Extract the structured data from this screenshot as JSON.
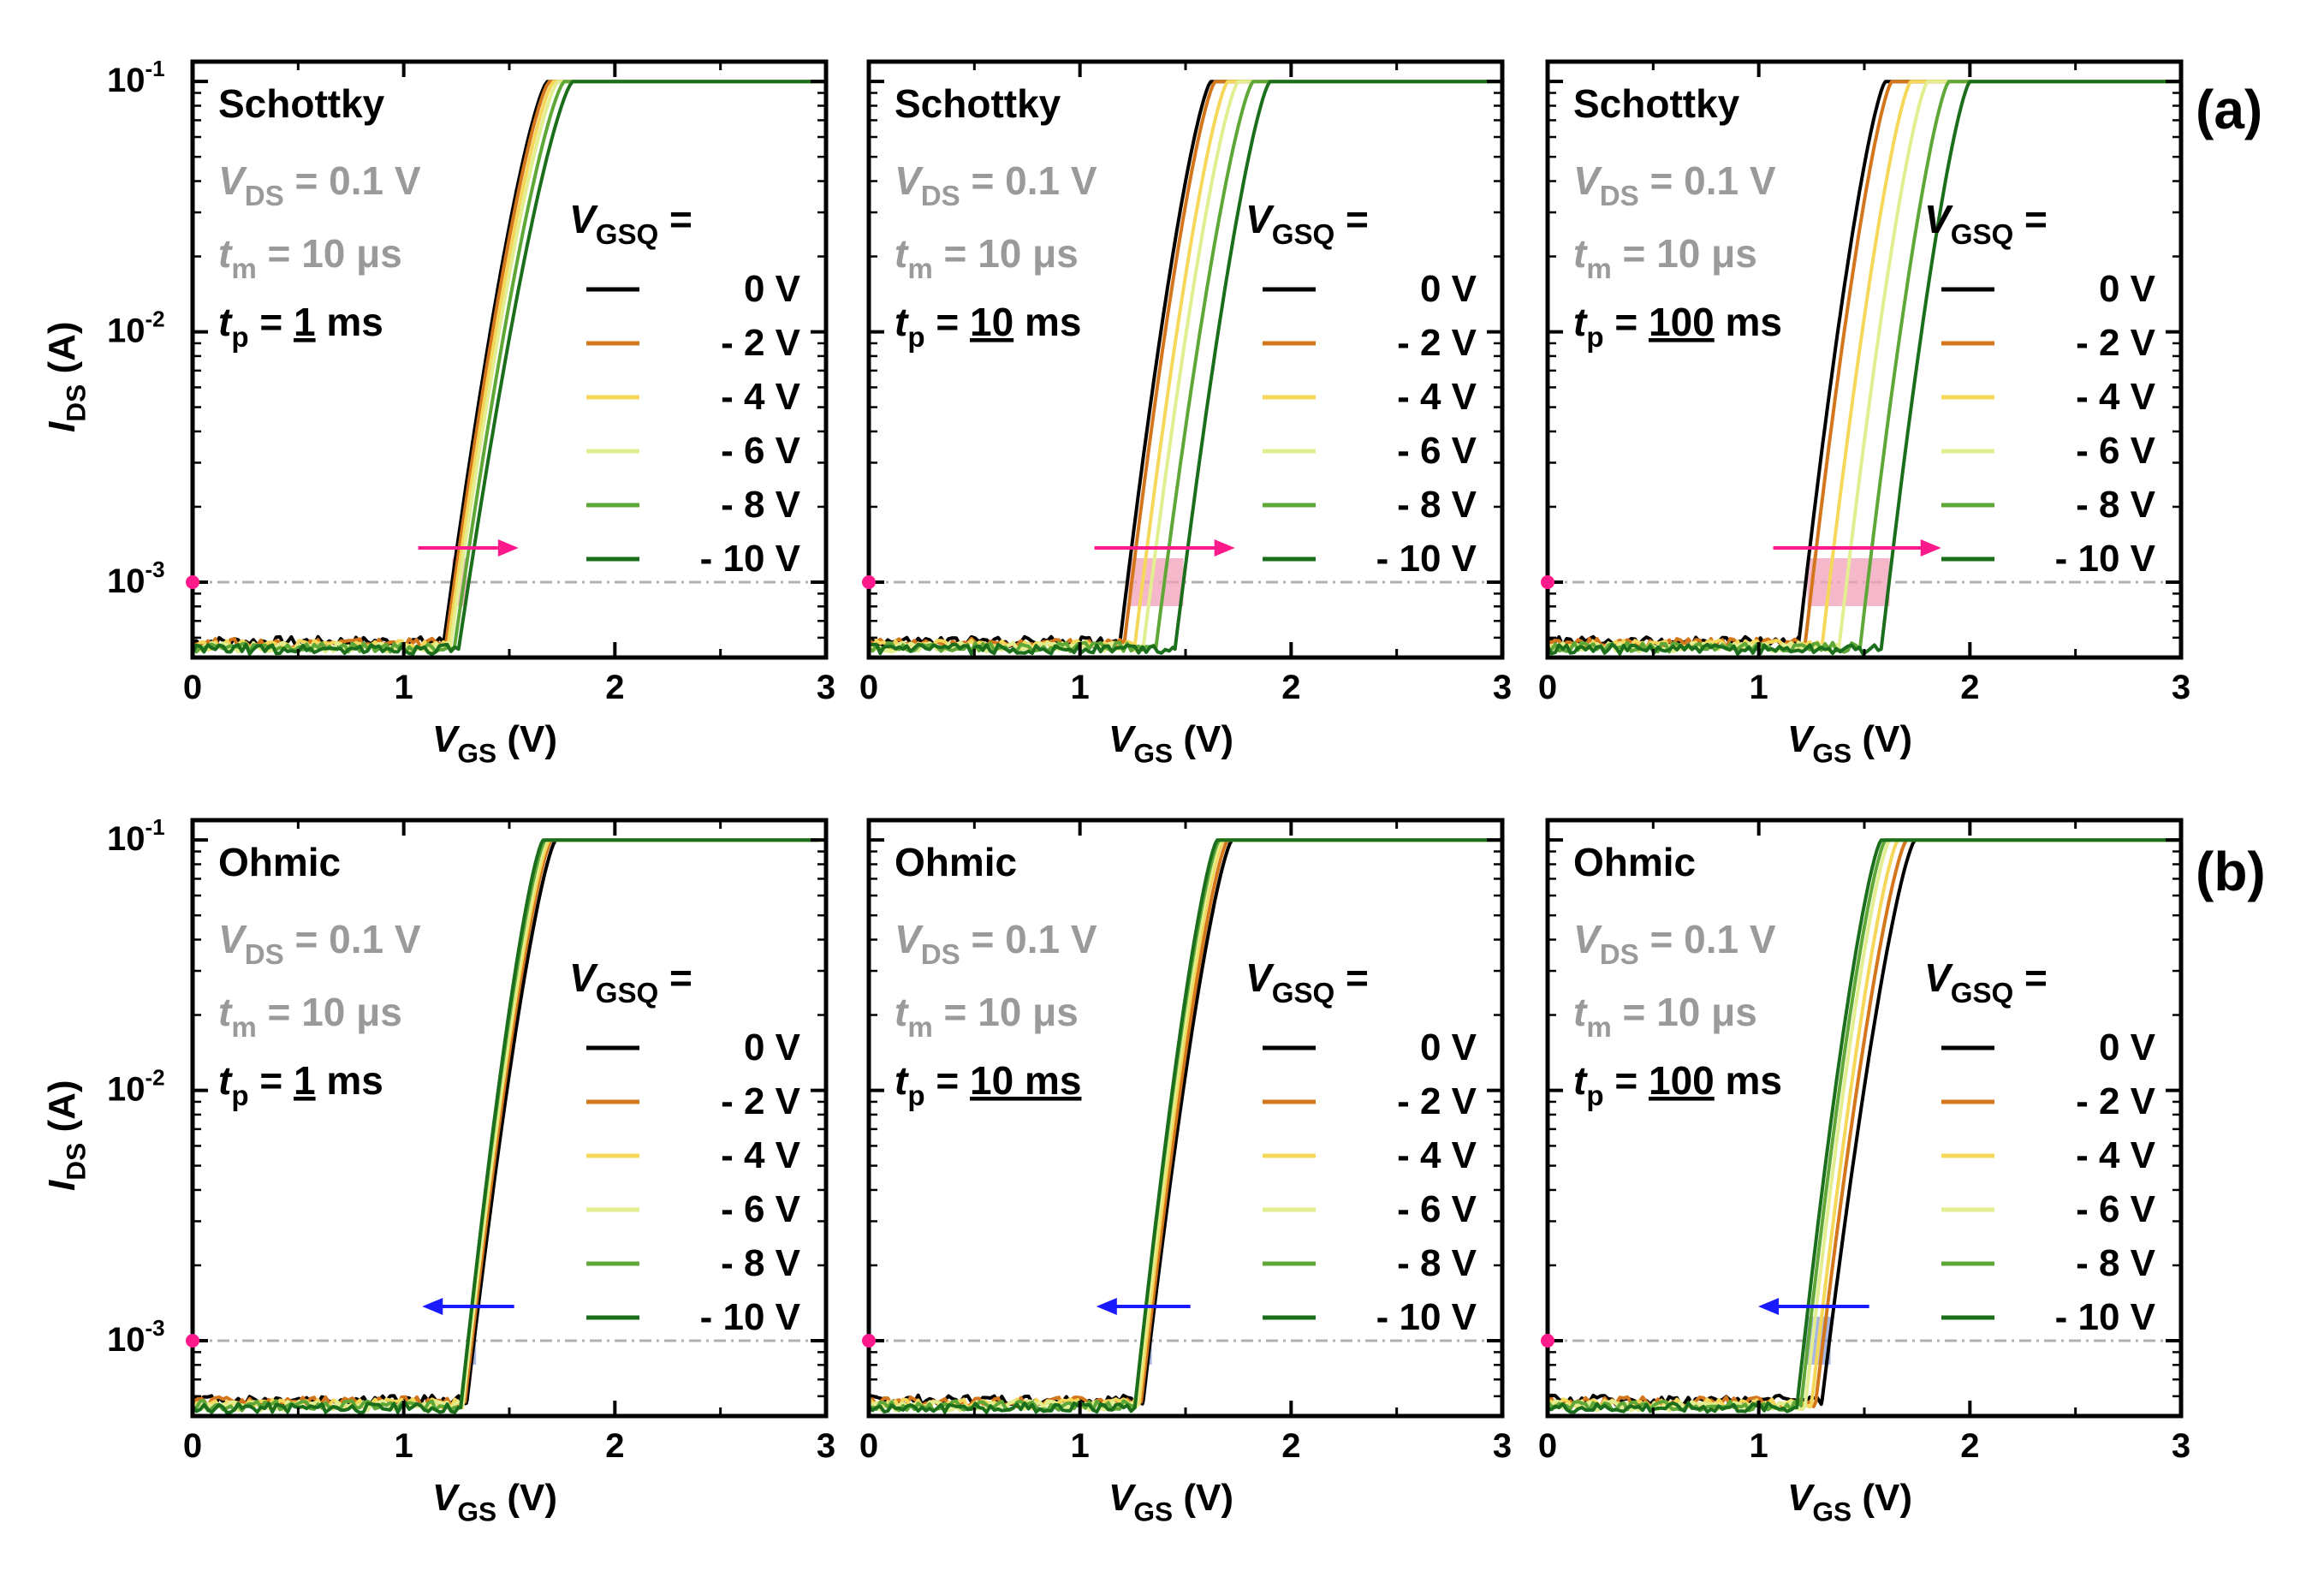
{
  "figure": {
    "row_labels": [
      "(a)",
      "(b)"
    ],
    "ylabel": {
      "main": "I",
      "sub": "DS",
      "unit": " (A)"
    },
    "xlabel": {
      "main": "V",
      "sub": "GS",
      "unit": " (V)"
    },
    "common": {
      "vds": {
        "main": "V",
        "sub": "DS",
        "rest": " = 0.1 V"
      },
      "tm": {
        "main": "t",
        "sub": "m",
        "rest": " = 10 μs"
      },
      "legend_title": {
        "main": "V",
        "sub": "GSQ",
        "rest": " ="
      }
    },
    "legend": [
      {
        "label": "0 V",
        "color": "#000000"
      },
      {
        "label": "- 2 V",
        "color": "#d4761c"
      },
      {
        "label": "- 4 V",
        "color": "#f5d85a"
      },
      {
        "label": "- 6 V",
        "color": "#e2ee8f"
      },
      {
        "label": "- 8 V",
        "color": "#5fa838"
      },
      {
        "label": "- 10 V",
        "color": "#1b6e1b"
      }
    ],
    "colors": {
      "shift_arrow_right": "#ff1a8c",
      "shift_arrow_left": "#1a1aff",
      "band_pink": "#f2a0b8",
      "band_blue": "#8b9fd8",
      "ref_line": "#b0b0b0"
    }
  },
  "chart_data": [
    {
      "type": "line",
      "row": 0,
      "col": 0,
      "contact": "Schottky",
      "tp": {
        "prefix": " = ",
        "value": "1",
        "unit": " ms"
      },
      "shift_direction": "right",
      "xlabel": "VGS (V)",
      "ylabel": "IDS (A)",
      "xlim": [
        0,
        3
      ],
      "ylim": [
        0.0005,
        0.12
      ],
      "yscale": "log",
      "xticks": [
        0,
        1,
        2,
        3
      ],
      "yticks": [
        {
          "exp": "-1",
          "value": 0.1
        },
        {
          "exp": "-2",
          "value": 0.01
        },
        {
          "exp": "-3",
          "value": 0.001
        }
      ],
      "reference_current": 0.001,
      "series": [
        {
          "name": "0 V",
          "threshold_v": 1.19,
          "saturation_v": 1.68,
          "i_on": 0.1,
          "noise_floor": 0.00058
        },
        {
          "name": "- 2 V",
          "threshold_v": 1.2,
          "saturation_v": 1.69,
          "i_on": 0.1,
          "noise_floor": 0.00057
        },
        {
          "name": "- 4 V",
          "threshold_v": 1.21,
          "saturation_v": 1.71,
          "i_on": 0.1,
          "noise_floor": 0.00056
        },
        {
          "name": "- 6 V",
          "threshold_v": 1.22,
          "saturation_v": 1.73,
          "i_on": 0.1,
          "noise_floor": 0.00055
        },
        {
          "name": "- 8 V",
          "threshold_v": 1.24,
          "saturation_v": 1.76,
          "i_on": 0.1,
          "noise_floor": 0.00055
        },
        {
          "name": "- 10 V",
          "threshold_v": 1.26,
          "saturation_v": 1.8,
          "i_on": 0.1,
          "noise_floor": 0.00054
        }
      ]
    },
    {
      "type": "line",
      "row": 0,
      "col": 1,
      "contact": "Schottky",
      "tp": {
        "prefix": " = ",
        "value": "10",
        "unit": " ms"
      },
      "shift_direction": "right",
      "xlabel": "VGS (V)",
      "ylabel": "IDS (A)",
      "xlim": [
        0,
        3
      ],
      "ylim": [
        0.0005,
        0.12
      ],
      "yscale": "log",
      "xticks": [
        0,
        1,
        2,
        3
      ],
      "yticks": [
        {
          "exp": "-1",
          "value": 0.1
        },
        {
          "exp": "-2",
          "value": 0.01
        },
        {
          "exp": "-3",
          "value": 0.001
        }
      ],
      "reference_current": 0.001,
      "series": [
        {
          "name": "0 V",
          "threshold_v": 1.19,
          "saturation_v": 1.62,
          "i_on": 0.1,
          "noise_floor": 0.00058
        },
        {
          "name": "- 2 V",
          "threshold_v": 1.21,
          "saturation_v": 1.64,
          "i_on": 0.1,
          "noise_floor": 0.00057
        },
        {
          "name": "- 4 V",
          "threshold_v": 1.26,
          "saturation_v": 1.7,
          "i_on": 0.1,
          "noise_floor": 0.00056
        },
        {
          "name": "- 6 V",
          "threshold_v": 1.3,
          "saturation_v": 1.75,
          "i_on": 0.1,
          "noise_floor": 0.00055
        },
        {
          "name": "- 8 V",
          "threshold_v": 1.36,
          "saturation_v": 1.82,
          "i_on": 0.1,
          "noise_floor": 0.00055
        },
        {
          "name": "- 10 V",
          "threshold_v": 1.45,
          "saturation_v": 1.9,
          "i_on": 0.1,
          "noise_floor": 0.00054
        }
      ]
    },
    {
      "type": "line",
      "row": 0,
      "col": 2,
      "contact": "Schottky",
      "tp": {
        "prefix": " = ",
        "value": "100",
        "unit": " ms"
      },
      "shift_direction": "right",
      "xlabel": "VGS (V)",
      "ylabel": "IDS (A)",
      "xlim": [
        0,
        3
      ],
      "ylim": [
        0.0005,
        0.12
      ],
      "yscale": "log",
      "xticks": [
        0,
        1,
        2,
        3
      ],
      "yticks": [
        {
          "exp": "-1",
          "value": 0.1
        },
        {
          "exp": "-2",
          "value": 0.01
        },
        {
          "exp": "-3",
          "value": 0.001
        }
      ],
      "reference_current": 0.001,
      "series": [
        {
          "name": "0 V",
          "threshold_v": 1.19,
          "saturation_v": 1.6,
          "i_on": 0.1,
          "noise_floor": 0.00058
        },
        {
          "name": "- 2 V",
          "threshold_v": 1.22,
          "saturation_v": 1.63,
          "i_on": 0.1,
          "noise_floor": 0.00057
        },
        {
          "name": "- 4 V",
          "threshold_v": 1.3,
          "saturation_v": 1.72,
          "i_on": 0.1,
          "noise_floor": 0.00056
        },
        {
          "name": "- 6 V",
          "threshold_v": 1.38,
          "saturation_v": 1.8,
          "i_on": 0.1,
          "noise_floor": 0.00055
        },
        {
          "name": "- 8 V",
          "threshold_v": 1.48,
          "saturation_v": 1.9,
          "i_on": 0.1,
          "noise_floor": 0.00055
        },
        {
          "name": "- 10 V",
          "threshold_v": 1.58,
          "saturation_v": 2.0,
          "i_on": 0.1,
          "noise_floor": 0.00054
        }
      ]
    },
    {
      "type": "line",
      "row": 1,
      "col": 0,
      "contact": "Ohmic",
      "tp": {
        "prefix": " = ",
        "value": "1",
        "unit": " ms"
      },
      "shift_direction": "left",
      "xlabel": "VGS (V)",
      "ylabel": "IDS (A)",
      "xlim": [
        0,
        3
      ],
      "ylim": [
        0.0005,
        0.12
      ],
      "yscale": "log",
      "xticks": [
        0,
        1,
        2,
        3
      ],
      "yticks": [
        {
          "exp": "-1",
          "value": 0.1
        },
        {
          "exp": "-2",
          "value": 0.01
        },
        {
          "exp": "-3",
          "value": 0.001
        }
      ],
      "reference_current": 0.001,
      "series": [
        {
          "name": "0 V",
          "threshold_v": 1.3,
          "saturation_v": 1.72,
          "i_on": 0.1,
          "noise_floor": 0.00058
        },
        {
          "name": "- 2 V",
          "threshold_v": 1.29,
          "saturation_v": 1.7,
          "i_on": 0.1,
          "noise_floor": 0.00057
        },
        {
          "name": "- 4 V",
          "threshold_v": 1.28,
          "saturation_v": 1.69,
          "i_on": 0.1,
          "noise_floor": 0.00056
        },
        {
          "name": "- 6 V",
          "threshold_v": 1.28,
          "saturation_v": 1.68,
          "i_on": 0.1,
          "noise_floor": 0.00055
        },
        {
          "name": "- 8 V",
          "threshold_v": 1.27,
          "saturation_v": 1.67,
          "i_on": 0.1,
          "noise_floor": 0.00055
        },
        {
          "name": "- 10 V",
          "threshold_v": 1.27,
          "saturation_v": 1.66,
          "i_on": 0.1,
          "noise_floor": 0.00054
        }
      ]
    },
    {
      "type": "line",
      "row": 1,
      "col": 1,
      "contact": "Ohmic",
      "tp": {
        "prefix": " = ",
        "value": "10 ms",
        "unit": ""
      },
      "shift_direction": "left",
      "xlabel": "VGS (V)",
      "ylabel": "IDS (A)",
      "xlim": [
        0,
        3
      ],
      "ylim": [
        0.0005,
        0.12
      ],
      "yscale": "log",
      "xticks": [
        0,
        1,
        2,
        3
      ],
      "yticks": [
        {
          "exp": "-1",
          "value": 0.1
        },
        {
          "exp": "-2",
          "value": 0.01
        },
        {
          "exp": "-3",
          "value": 0.001
        }
      ],
      "reference_current": 0.001,
      "series": [
        {
          "name": "0 V",
          "threshold_v": 1.3,
          "saturation_v": 1.72,
          "i_on": 0.1,
          "noise_floor": 0.00058
        },
        {
          "name": "- 2 V",
          "threshold_v": 1.29,
          "saturation_v": 1.7,
          "i_on": 0.1,
          "noise_floor": 0.00057
        },
        {
          "name": "- 4 V",
          "threshold_v": 1.28,
          "saturation_v": 1.68,
          "i_on": 0.1,
          "noise_floor": 0.00056
        },
        {
          "name": "- 6 V",
          "threshold_v": 1.27,
          "saturation_v": 1.67,
          "i_on": 0.1,
          "noise_floor": 0.00055
        },
        {
          "name": "- 8 V",
          "threshold_v": 1.26,
          "saturation_v": 1.66,
          "i_on": 0.1,
          "noise_floor": 0.00055
        },
        {
          "name": "- 10 V",
          "threshold_v": 1.26,
          "saturation_v": 1.65,
          "i_on": 0.1,
          "noise_floor": 0.00054
        }
      ]
    },
    {
      "type": "line",
      "row": 1,
      "col": 2,
      "contact": "Ohmic",
      "tp": {
        "prefix": " = ",
        "value": "100",
        "unit": " ms"
      },
      "shift_direction": "left",
      "xlabel": "VGS (V)",
      "ylabel": "IDS (A)",
      "xlim": [
        0,
        3
      ],
      "ylim": [
        0.0005,
        0.12
      ],
      "yscale": "log",
      "xticks": [
        0,
        1,
        2,
        3
      ],
      "yticks": [
        {
          "exp": "-1",
          "value": 0.1
        },
        {
          "exp": "-2",
          "value": 0.01
        },
        {
          "exp": "-3",
          "value": 0.001
        }
      ],
      "reference_current": 0.001,
      "series": [
        {
          "name": "0 V",
          "threshold_v": 1.3,
          "saturation_v": 1.74,
          "i_on": 0.1,
          "noise_floor": 0.00058
        },
        {
          "name": "- 2 V",
          "threshold_v": 1.27,
          "saturation_v": 1.7,
          "i_on": 0.1,
          "noise_floor": 0.00057
        },
        {
          "name": "- 4 V",
          "threshold_v": 1.25,
          "saturation_v": 1.66,
          "i_on": 0.1,
          "noise_floor": 0.00056
        },
        {
          "name": "- 6 V",
          "threshold_v": 1.22,
          "saturation_v": 1.62,
          "i_on": 0.1,
          "noise_floor": 0.00055
        },
        {
          "name": "- 8 V",
          "threshold_v": 1.2,
          "saturation_v": 1.6,
          "i_on": 0.1,
          "noise_floor": 0.00055
        },
        {
          "name": "- 10 V",
          "threshold_v": 1.18,
          "saturation_v": 1.58,
          "i_on": 0.1,
          "noise_floor": 0.00054
        }
      ]
    }
  ]
}
